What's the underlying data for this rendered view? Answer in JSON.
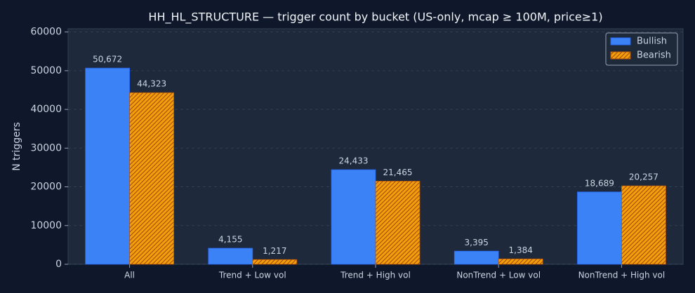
{
  "chart_data": {
    "type": "bar",
    "title": "HH_HL_STRUCTURE — trigger count by bucket (US-only, mcap ≥ 100M, price≥1)",
    "y_label": "N triggers",
    "categories": [
      "All",
      "Trend + Low vol",
      "Trend + High vol",
      "NonTrend + Low vol",
      "NonTrend + High vol"
    ],
    "series": [
      {
        "name": "Bullish",
        "color": "#3b82f6",
        "hatch": false,
        "values": [
          50672,
          4155,
          24433,
          3395,
          18689
        ],
        "value_labels": [
          "50,672",
          "4,155",
          "24,433",
          "3,395",
          "18,689"
        ]
      },
      {
        "name": "Bearish",
        "color": "#f59e0b",
        "hatch": true,
        "values": [
          44323,
          1217,
          21465,
          1384,
          20257
        ],
        "value_labels": [
          "44,323",
          "1,217",
          "21,465",
          "1,384",
          "20,257"
        ]
      }
    ],
    "ylim": [
      0,
      60840
    ],
    "yticks": [
      0,
      10000,
      20000,
      30000,
      40000,
      50000,
      60000
    ],
    "grid": true,
    "legend": "upper right"
  }
}
